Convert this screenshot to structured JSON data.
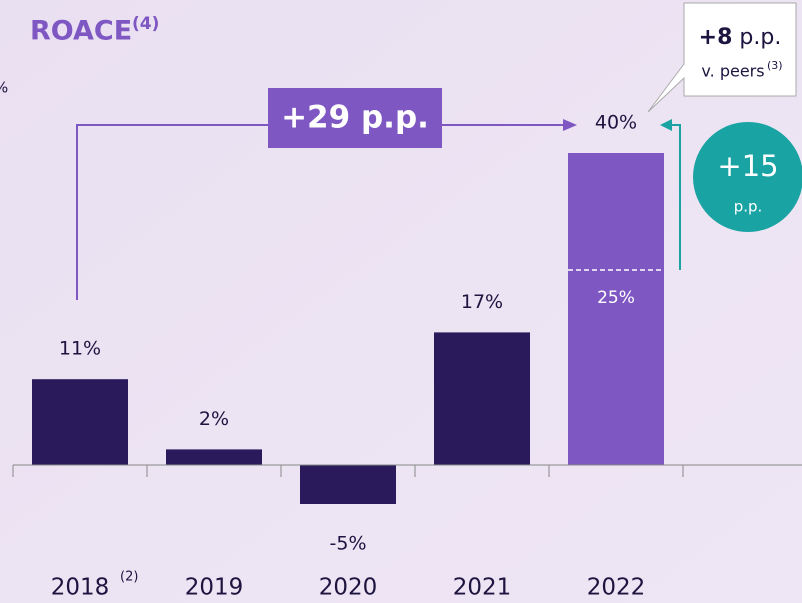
{
  "chart_data": {
    "type": "bar",
    "title": "ROACE",
    "title_note": "(4)",
    "unit_label": "%",
    "categories": [
      "2018",
      "2019",
      "2020",
      "2021",
      "2022"
    ],
    "category_notes": [
      "(2)",
      null,
      null,
      null,
      null
    ],
    "values": [
      11,
      2,
      -5,
      17,
      40
    ],
    "value_labels": [
      "11%",
      "2%",
      "-5%",
      "17%",
      "40%"
    ],
    "colors": [
      "#2a1a5c",
      "#2a1a5c",
      "#2a1a5c",
      "#2a1a5c",
      "#7e57c2"
    ],
    "reference": {
      "value": 25,
      "label": "25%"
    },
    "growth_label": "+29 p.p.",
    "change_value": "+15",
    "change_unit": "p.p.",
    "peers_value": "+8",
    "peers_unit": " p.p.",
    "peers_text": "v. peers",
    "peers_note": "(3)"
  }
}
